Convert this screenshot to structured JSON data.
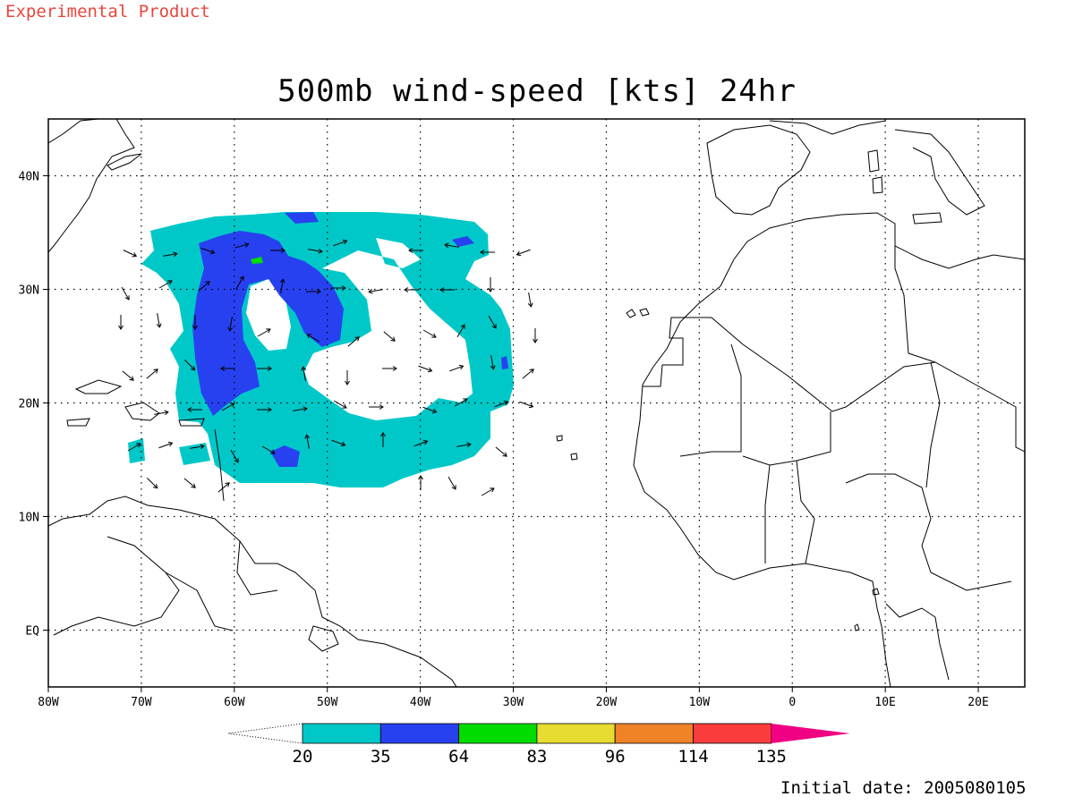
{
  "header": {
    "product_label": "Experimental Product",
    "title": "500mb wind-speed [kts] 24hr",
    "initial_date": "Initial date: 2005080105"
  },
  "map": {
    "lon_range": [
      -80,
      25
    ],
    "lat_range": [
      -5,
      45
    ],
    "lon_ticks": [
      {
        "value": -80,
        "label": "80W"
      },
      {
        "value": -70,
        "label": "70W"
      },
      {
        "value": -60,
        "label": "60W"
      },
      {
        "value": -50,
        "label": "50W"
      },
      {
        "value": -40,
        "label": "40W"
      },
      {
        "value": -30,
        "label": "30W"
      },
      {
        "value": -20,
        "label": "20W"
      },
      {
        "value": -10,
        "label": "10W"
      },
      {
        "value": 0,
        "label": "0"
      },
      {
        "value": 10,
        "label": "10E"
      },
      {
        "value": 20,
        "label": "20E"
      }
    ],
    "lat_ticks": [
      {
        "value": 40,
        "label": "40N"
      },
      {
        "value": 30,
        "label": "30N"
      },
      {
        "value": 20,
        "label": "20N"
      },
      {
        "value": 10,
        "label": "10N"
      },
      {
        "value": 0,
        "label": "EQ"
      }
    ],
    "gridlines": "dotted"
  },
  "colorbar": {
    "thresholds": [
      "20",
      "35",
      "64",
      "83",
      "96",
      "114",
      "135"
    ],
    "colors": [
      "#00c8c8",
      "#2841f0",
      "#00dc00",
      "#e6dc32",
      "#f08228",
      "#fa3c3c",
      "#f00082"
    ]
  }
}
